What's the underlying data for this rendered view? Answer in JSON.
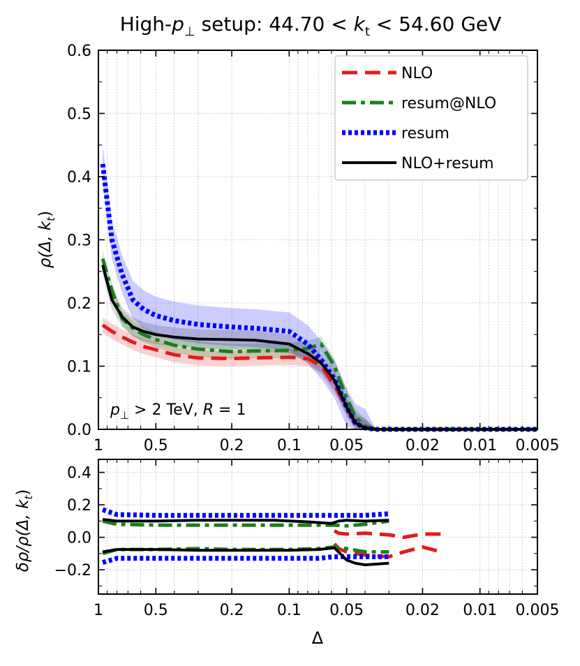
{
  "colors": {
    "NLO": "#e41a1c",
    "resum@NLO": "#1a7f1a",
    "resum": "#0000ff",
    "NLO+resum": "#000000"
  },
  "chart_data": [
    {
      "type": "line",
      "title": "High-p⊥ setup: 44.70 < kt < 54.60 GeV",
      "title_parts": {
        "a": "High-",
        "b": "p",
        "c": "⊥",
        "d": " setup: 44.70 < ",
        "e": "k",
        "f": "t",
        "g": " < 54.60 GeV"
      },
      "xlabel": "",
      "ylabel": "ρ(Δ, kt)",
      "ylabel_parts": {
        "a": "ρ(Δ, ",
        "b": "k",
        "c": "t",
        "d": ")"
      },
      "xscale": "log-reversed",
      "xlim": [
        1,
        0.005
      ],
      "ylim": [
        0,
        0.6
      ],
      "xticks": [
        1,
        0.5,
        0.2,
        0.1,
        0.05,
        0.02,
        0.01,
        0.005
      ],
      "xtick_labels": [
        "1",
        "0.5",
        "0.2",
        "0.1",
        "0.05",
        "0.02",
        "0.01",
        "0.005"
      ],
      "yticks": [
        0,
        0.1,
        0.2,
        0.3,
        0.4,
        0.5,
        0.6
      ],
      "ytick_labels": [
        "0.0",
        "0.1",
        "0.2",
        "0.3",
        "0.4",
        "0.5",
        "0.6"
      ],
      "grid": true,
      "legend_position": "top-right",
      "annotation": "p⊥ > 2 TeV, R = 1",
      "annotation_parts": {
        "a": "p",
        "b": "⊥",
        "c": " > 2 TeV, ",
        "d": "R",
        "e": " = 1"
      },
      "x": [
        0.95,
        0.85,
        0.75,
        0.66,
        0.58,
        0.5,
        0.4,
        0.3,
        0.2,
        0.15,
        0.1,
        0.08,
        0.068,
        0.058,
        0.05,
        0.045,
        0.04,
        0.035,
        0.03,
        0.02,
        0.01,
        0.005
      ],
      "series": [
        {
          "name": "NLO",
          "style": "dashed",
          "values": [
            0.165,
            0.155,
            0.146,
            0.138,
            0.131,
            0.126,
            0.118,
            0.113,
            0.112,
            0.113,
            0.114,
            0.112,
            0.1,
            0.07,
            0.035,
            0.01,
            0.002,
            0,
            0,
            0,
            0,
            0
          ],
          "band": 0.012
        },
        {
          "name": "resum@NLO",
          "style": "dashdot",
          "values": [
            0.27,
            0.22,
            0.175,
            0.16,
            0.15,
            0.142,
            0.133,
            0.127,
            0.123,
            0.124,
            0.125,
            0.128,
            0.135,
            0.1,
            0.05,
            0.02,
            0.005,
            0,
            0,
            0,
            0,
            0
          ],
          "band": 0.012
        },
        {
          "name": "resum",
          "style": "dotted",
          "values": [
            0.42,
            0.3,
            0.245,
            0.205,
            0.19,
            0.18,
            0.172,
            0.166,
            0.162,
            0.16,
            0.155,
            0.135,
            0.11,
            0.08,
            0.035,
            0.01,
            0.002,
            0,
            0,
            0,
            0,
            0
          ],
          "band": 0.03
        },
        {
          "name": "NLO+resum",
          "style": "solid",
          "values": [
            0.26,
            0.205,
            0.178,
            0.162,
            0.155,
            0.15,
            0.146,
            0.143,
            0.142,
            0.141,
            0.135,
            0.12,
            0.105,
            0.078,
            0.035,
            0.01,
            0.002,
            0,
            0,
            0,
            0,
            0
          ],
          "band": 0.015
        }
      ]
    },
    {
      "type": "line",
      "xlabel": "Δ",
      "ylabel": "δρ/ρ(Δ, kt)",
      "ylabel_parts": {
        "a": "δρ/ρ(Δ, ",
        "b": "k",
        "c": "t",
        "d": ")"
      },
      "xscale": "log-reversed",
      "xlim": [
        1,
        0.005
      ],
      "ylim": [
        -0.35,
        0.48
      ],
      "xticks": [
        1,
        0.5,
        0.2,
        0.1,
        0.05,
        0.02,
        0.01,
        0.005
      ],
      "xtick_labels": [
        "1",
        "0.5",
        "0.2",
        "0.1",
        "0.05",
        "0.02",
        "0.01",
        "0.005"
      ],
      "yticks": [
        -0.2,
        0,
        0.2,
        0.4
      ],
      "ytick_labels": [
        "−0.2",
        "0.0",
        "0.2",
        "0.4"
      ],
      "grid": true,
      "series": [
        {
          "name": "NLO upper",
          "legend": "NLO",
          "style": "dashed",
          "x": [
            0.058,
            0.055,
            0.05,
            0.04,
            0.03,
            0.025,
            0.02,
            0.016
          ],
          "values": [
            0.04,
            0.025,
            0.02,
            0.025,
            0.015,
            0.0,
            0.02,
            0.02
          ]
        },
        {
          "name": "NLO lower",
          "legend": "NLO",
          "style": "dashed",
          "x": [
            0.058,
            0.055,
            0.05,
            0.04,
            0.03,
            0.025,
            0.02,
            0.016
          ],
          "values": [
            -0.04,
            -0.07,
            -0.09,
            -0.11,
            -0.12,
            -0.09,
            -0.06,
            -0.09
          ]
        },
        {
          "name": "resum@NLO upper",
          "legend": "resum@NLO",
          "style": "dashdot",
          "x": [
            0.95,
            0.8,
            0.5,
            0.3,
            0.2,
            0.1,
            0.07,
            0.058,
            0.05,
            0.04,
            0.03
          ],
          "values": [
            0.1,
            0.08,
            0.075,
            0.075,
            0.075,
            0.075,
            0.075,
            0.075,
            0.07,
            0.08,
            0.1
          ]
        },
        {
          "name": "resum@NLO lower",
          "legend": "resum@NLO",
          "style": "dashdot",
          "x": [
            0.95,
            0.8,
            0.5,
            0.3,
            0.2,
            0.1,
            0.07,
            0.058,
            0.05,
            0.04,
            0.03
          ],
          "values": [
            -0.1,
            -0.075,
            -0.075,
            -0.07,
            -0.075,
            -0.075,
            -0.07,
            -0.06,
            -0.07,
            -0.09,
            -0.09
          ]
        },
        {
          "name": "resum upper",
          "legend": "resum",
          "style": "dotted",
          "x": [
            0.95,
            0.8,
            0.5,
            0.3,
            0.2,
            0.1,
            0.07,
            0.058,
            0.05,
            0.04,
            0.03
          ],
          "values": [
            0.17,
            0.14,
            0.135,
            0.135,
            0.135,
            0.135,
            0.135,
            0.135,
            0.135,
            0.135,
            0.145
          ]
        },
        {
          "name": "resum lower",
          "legend": "resum",
          "style": "dotted",
          "x": [
            0.95,
            0.8,
            0.5,
            0.3,
            0.2,
            0.1,
            0.07,
            0.058,
            0.05,
            0.04,
            0.03
          ],
          "values": [
            -0.155,
            -0.13,
            -0.13,
            -0.13,
            -0.13,
            -0.13,
            -0.13,
            -0.12,
            -0.12,
            -0.12,
            -0.12
          ]
        },
        {
          "name": "NLO+resum upper",
          "legend": "NLO+resum",
          "style": "solid",
          "x": [
            0.95,
            0.8,
            0.5,
            0.3,
            0.2,
            0.12,
            0.08,
            0.06,
            0.055,
            0.05,
            0.04,
            0.03
          ],
          "values": [
            0.11,
            0.1,
            0.1,
            0.105,
            0.105,
            0.105,
            0.095,
            0.085,
            0.1,
            0.105,
            0.1,
            0.105
          ]
        },
        {
          "name": "NLO+resum lower",
          "legend": "NLO+resum",
          "style": "solid",
          "x": [
            0.95,
            0.8,
            0.5,
            0.3,
            0.2,
            0.1,
            0.07,
            0.058,
            0.05,
            0.045,
            0.04,
            0.03
          ],
          "values": [
            -0.09,
            -0.075,
            -0.075,
            -0.08,
            -0.08,
            -0.08,
            -0.075,
            -0.065,
            -0.14,
            -0.16,
            -0.17,
            -0.16
          ]
        }
      ]
    }
  ]
}
